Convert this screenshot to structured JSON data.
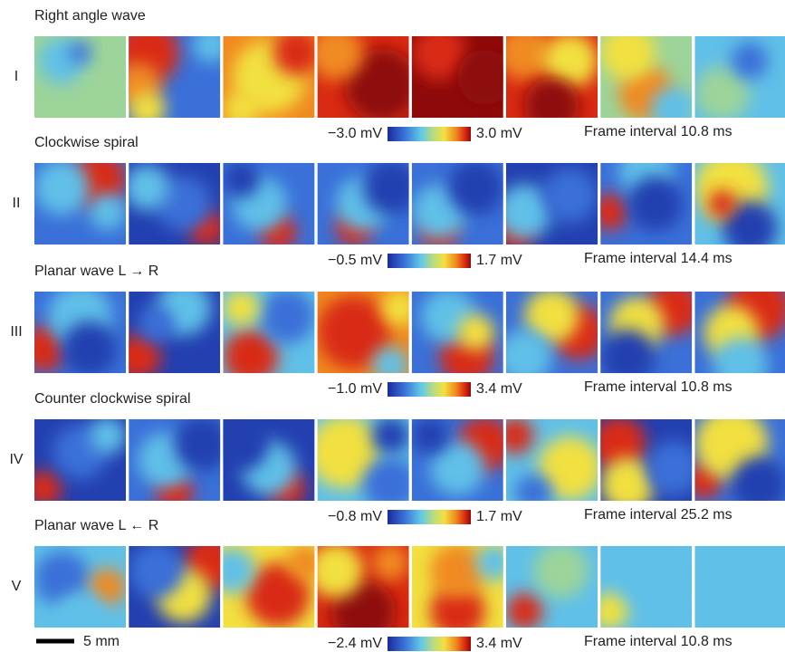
{
  "rows": [
    {
      "title": "Right angle wave",
      "label": "I",
      "scale_min": "−3.0 mV",
      "scale_max": "3.0 mV",
      "frame_interval": "Frame interval 10.8 ms"
    },
    {
      "title": "Clockwise spiral",
      "label": "II",
      "scale_min": "−0.5 mV",
      "scale_max": "1.7 mV",
      "frame_interval": "Frame interval 14.4 ms"
    },
    {
      "title": "Planar wave L → R",
      "label": "III",
      "scale_min": "−1.0 mV",
      "scale_max": "3.4 mV",
      "frame_interval": "Frame interval 10.8 ms"
    },
    {
      "title": "Counter clockwise spiral",
      "label": "IV",
      "scale_min": "−0.8 mV",
      "scale_max": "1.7 mV",
      "frame_interval": "Frame interval 25.2 ms"
    },
    {
      "title": "Planar wave L ← R",
      "label": "V",
      "scale_min": "−2.4 mV",
      "scale_max": "3.4 mV",
      "frame_interval": "Frame interval 10.8 ms"
    }
  ],
  "scale_bar": "5 mm"
}
